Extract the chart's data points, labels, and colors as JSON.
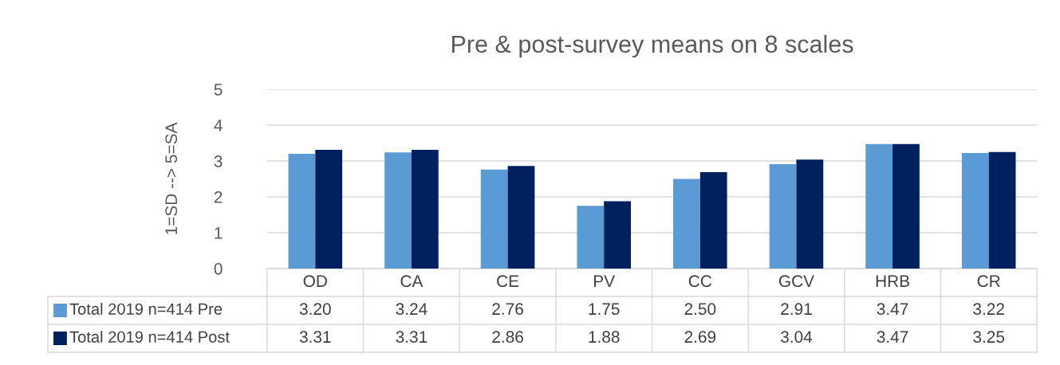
{
  "chart_data": {
    "type": "bar",
    "title": "Pre & post-survey means on 8 scales",
    "ylabel": "1=SD --> 5=SA",
    "categories": [
      "OD",
      "CA",
      "CE",
      "PV",
      "CC",
      "GCV",
      "HRB",
      "CR"
    ],
    "series": [
      {
        "name": "Total 2019 n=414 Pre",
        "color": "#5b9bd5",
        "values": [
          3.2,
          3.24,
          2.76,
          1.75,
          2.5,
          2.91,
          3.47,
          3.22
        ],
        "value_labels": [
          "3.20",
          "3.24",
          "2.76",
          "1.75",
          "2.50",
          "2.91",
          "3.47",
          "3.22"
        ]
      },
      {
        "name": "Total 2019 n=414 Post",
        "color": "#002060",
        "values": [
          3.31,
          3.31,
          2.86,
          1.88,
          2.69,
          3.04,
          3.47,
          3.25
        ],
        "value_labels": [
          "3.31",
          "3.31",
          "2.86",
          "1.88",
          "2.69",
          "3.04",
          "3.47",
          "3.25"
        ]
      }
    ],
    "ylim": [
      0,
      5
    ],
    "yticks": [
      0,
      1,
      2,
      3,
      4,
      5
    ],
    "grid": "y",
    "legend": "bottom"
  }
}
